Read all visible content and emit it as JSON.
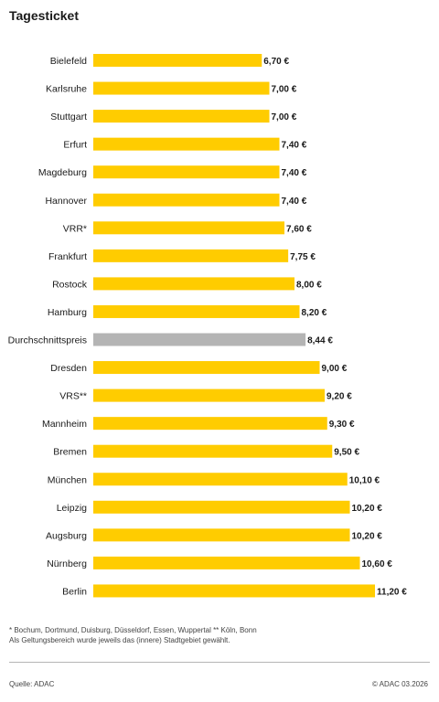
{
  "title": "Tagesticket",
  "chart_data": {
    "type": "bar",
    "orientation": "horizontal",
    "title": "Tagesticket",
    "categories": [
      "Bielefeld",
      "Karlsruhe",
      "Stuttgart",
      "Erfurt",
      "Magdeburg",
      "Hannover",
      "VRR*",
      "Frankfurt",
      "Rostock",
      "Hamburg",
      "Durchschnittspreis",
      "Dresden",
      "VRS**",
      "Mannheim",
      "Bremen",
      "München",
      "Leipzig",
      "Augsburg",
      "Nürnberg",
      "Berlin"
    ],
    "values": [
      6.7,
      7.0,
      7.0,
      7.4,
      7.4,
      7.4,
      7.6,
      7.75,
      8.0,
      8.2,
      8.44,
      9.0,
      9.2,
      9.3,
      9.5,
      10.1,
      10.2,
      10.2,
      10.6,
      11.2
    ],
    "value_labels": [
      "6,70 €",
      "7,00 €",
      "7,00 €",
      "7,40 €",
      "7,40 €",
      "7,40 €",
      "7,60 €",
      "7,75 €",
      "8,00 €",
      "8,20 €",
      "8,44 €",
      "9,00 €",
      "9,20 €",
      "9,30 €",
      "9,50 €",
      "10,10 €",
      "10,20 €",
      "10,20 €",
      "10,60 €",
      "11,20 €"
    ],
    "highlight_category": "Durchschnittspreis",
    "xlim": [
      0,
      11.2
    ],
    "grid": false,
    "colors": {
      "bar": "#ffcc00",
      "highlight": "#b4b4b4"
    }
  },
  "footnotes": {
    "line1": "* Bochum, Dortmund, Duisburg, Düsseldorf, Essen, Wuppertal   ** Köln, Bonn",
    "line2": "Als Geltungsbereich wurde jeweils das (innere) Stadtgebiet gewählt."
  },
  "source": "Quelle: ADAC",
  "copyright": "© ADAC 03.2026"
}
